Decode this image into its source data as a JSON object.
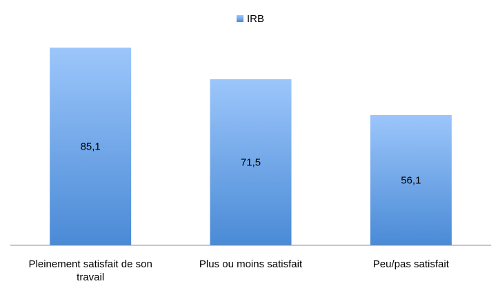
{
  "chart_data": {
    "type": "bar",
    "categories": [
      "Pleinement satisfait de son travail",
      "Plus ou moins satisfait",
      "Peu/pas satisfait"
    ],
    "series": [
      {
        "name": "IRB",
        "values": [
          85.1,
          71.5,
          56.1
        ],
        "labels": [
          "85,1",
          "71,5",
          "56,1"
        ]
      }
    ],
    "ylim": [
      0,
      100
    ],
    "grid": false,
    "legend_position": "top-center",
    "colors": {
      "bar_top": "#9CC6FB",
      "bar_bottom": "#4A8AD6",
      "axis": "#8C8C8C"
    }
  }
}
